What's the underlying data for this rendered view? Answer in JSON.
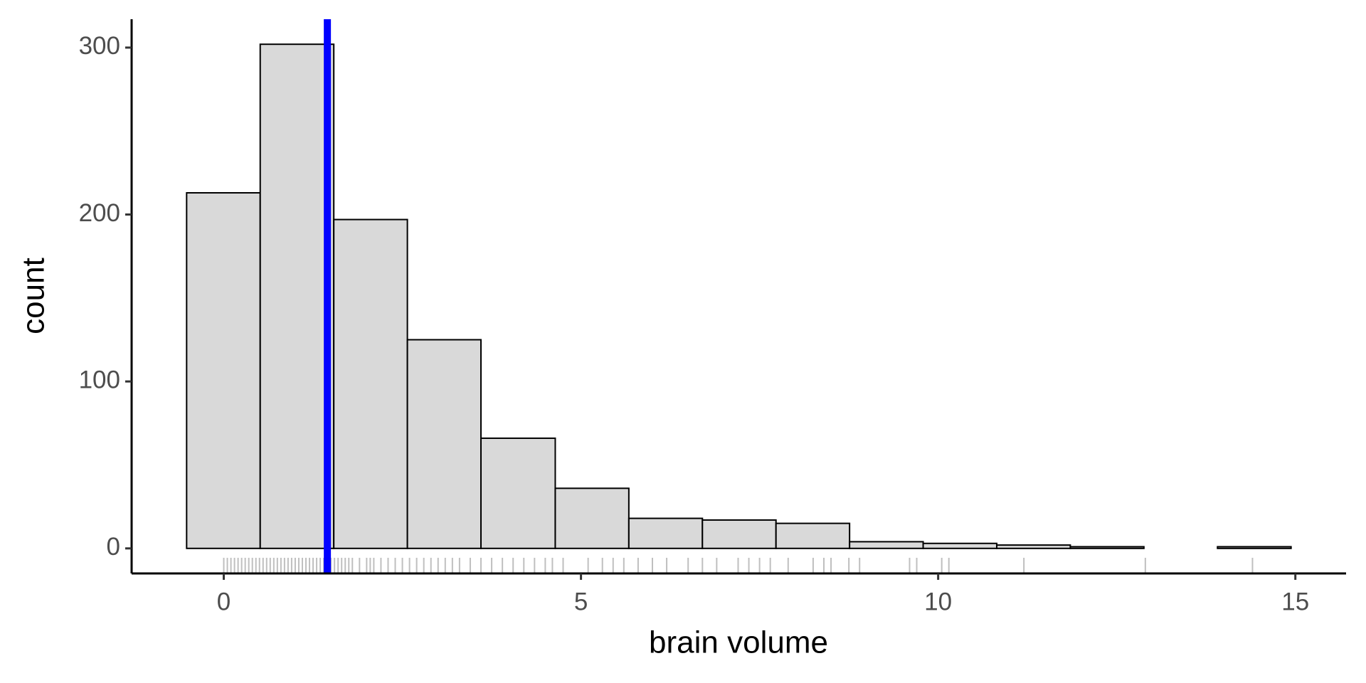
{
  "chart_data": {
    "type": "histogram",
    "x_label": "brain volume",
    "y_label": "count",
    "bins": [
      -0.52,
      0.51,
      1.54,
      2.57,
      3.6,
      4.64,
      5.67,
      6.7,
      7.73,
      8.76,
      9.79,
      10.82,
      11.85,
      12.88,
      13.91,
      14.94
    ],
    "counts": [
      213,
      302,
      197,
      125,
      66,
      36,
      18,
      17,
      15,
      4,
      3,
      2,
      1,
      0,
      1
    ],
    "color": "#d9d9d9",
    "edgecolor": "#000000",
    "xlim": [
      -1.29,
      15.71
    ],
    "xticks": [
      0,
      5,
      10,
      15
    ],
    "ylim": [
      -15,
      317
    ],
    "yticks": [
      0,
      100,
      200,
      300
    ],
    "vline": {
      "x": 1.45,
      "color": "#0000ff"
    },
    "rug": [
      0.0,
      0.05,
      0.1,
      0.15,
      0.2,
      0.25,
      0.3,
      0.35,
      0.4,
      0.45,
      0.5,
      0.55,
      0.6,
      0.65,
      0.7,
      0.75,
      0.8,
      0.85,
      0.9,
      0.95,
      1.0,
      1.05,
      1.1,
      1.15,
      1.2,
      1.25,
      1.3,
      1.35,
      1.4,
      1.5,
      1.55,
      1.6,
      1.65,
      1.7,
      1.75,
      1.8,
      1.9,
      2.0,
      2.05,
      2.1,
      2.2,
      2.3,
      2.4,
      2.5,
      2.6,
      2.7,
      2.8,
      2.9,
      3.0,
      3.1,
      3.2,
      3.3,
      3.45,
      3.6,
      3.75,
      3.9,
      4.05,
      4.2,
      4.35,
      4.5,
      4.6,
      4.75,
      5.1,
      5.3,
      5.45,
      5.6,
      5.8,
      6.0,
      6.2,
      6.5,
      6.7,
      6.9,
      7.2,
      7.35,
      7.5,
      7.65,
      7.9,
      8.25,
      8.4,
      8.5,
      8.75,
      8.9,
      9.6,
      9.7,
      10.05,
      10.15,
      11.2,
      12.9,
      14.4
    ]
  }
}
